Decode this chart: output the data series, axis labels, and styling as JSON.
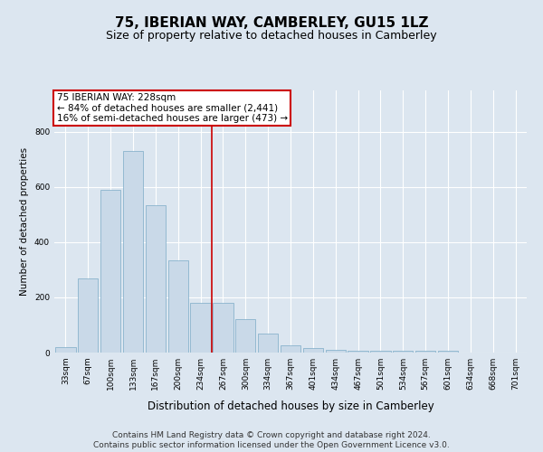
{
  "title": "75, IBERIAN WAY, CAMBERLEY, GU15 1LZ",
  "subtitle": "Size of property relative to detached houses in Camberley",
  "xlabel": "Distribution of detached houses by size in Camberley",
  "ylabel": "Number of detached properties",
  "categories": [
    "33sqm",
    "67sqm",
    "100sqm",
    "133sqm",
    "167sqm",
    "200sqm",
    "234sqm",
    "267sqm",
    "300sqm",
    "334sqm",
    "367sqm",
    "401sqm",
    "434sqm",
    "467sqm",
    "501sqm",
    "534sqm",
    "567sqm",
    "601sqm",
    "634sqm",
    "668sqm",
    "701sqm"
  ],
  "values": [
    20,
    270,
    590,
    730,
    535,
    335,
    180,
    180,
    120,
    70,
    25,
    15,
    10,
    8,
    6,
    5,
    5,
    6,
    0,
    0,
    0
  ],
  "bar_color": "#c9d9e8",
  "bar_edge_color": "#7baac7",
  "vline_x": 6.5,
  "annotation_lines": [
    "75 IBERIAN WAY: 228sqm",
    "← 84% of detached houses are smaller (2,441)",
    "16% of semi-detached houses are larger (473) →"
  ],
  "annotation_box_color": "#ffffff",
  "annotation_box_edge_color": "#cc0000",
  "bg_color": "#dce6f0",
  "plot_bg_color": "#dce6f0",
  "grid_color": "#ffffff",
  "footer_line1": "Contains HM Land Registry data © Crown copyright and database right 2024.",
  "footer_line2": "Contains public sector information licensed under the Open Government Licence v3.0.",
  "ylim": [
    0,
    950
  ],
  "title_fontsize": 11,
  "subtitle_fontsize": 9,
  "xlabel_fontsize": 8.5,
  "ylabel_fontsize": 7.5,
  "tick_fontsize": 6.5,
  "annotation_fontsize": 7.5,
  "footer_fontsize": 6.5
}
